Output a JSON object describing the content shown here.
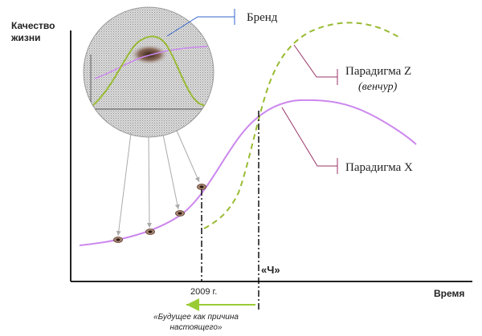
{
  "axes": {
    "y_label_line1": "Качество",
    "y_label_line2": "жизни",
    "x_label": "Время"
  },
  "labels": {
    "brand": "Бренд",
    "paradigm_z": "Парадигма Z",
    "paradigm_z_sub": "(венчур)",
    "paradigm_x": "Парадигма X",
    "year": "2009 г.",
    "ch_marker": "«Ч»",
    "future_line1": "«Будущее как причина",
    "future_line2": "настоящего»"
  },
  "colors": {
    "paradigm_x_curve": "#cc88ee",
    "paradigm_z_curve": "#99bb33",
    "callout_line": "#993366",
    "brand_callout": "#3366cc",
    "future_arrow": "#99cc33",
    "grey_arrows": "#aaaaaa",
    "text": "#222222"
  }
}
